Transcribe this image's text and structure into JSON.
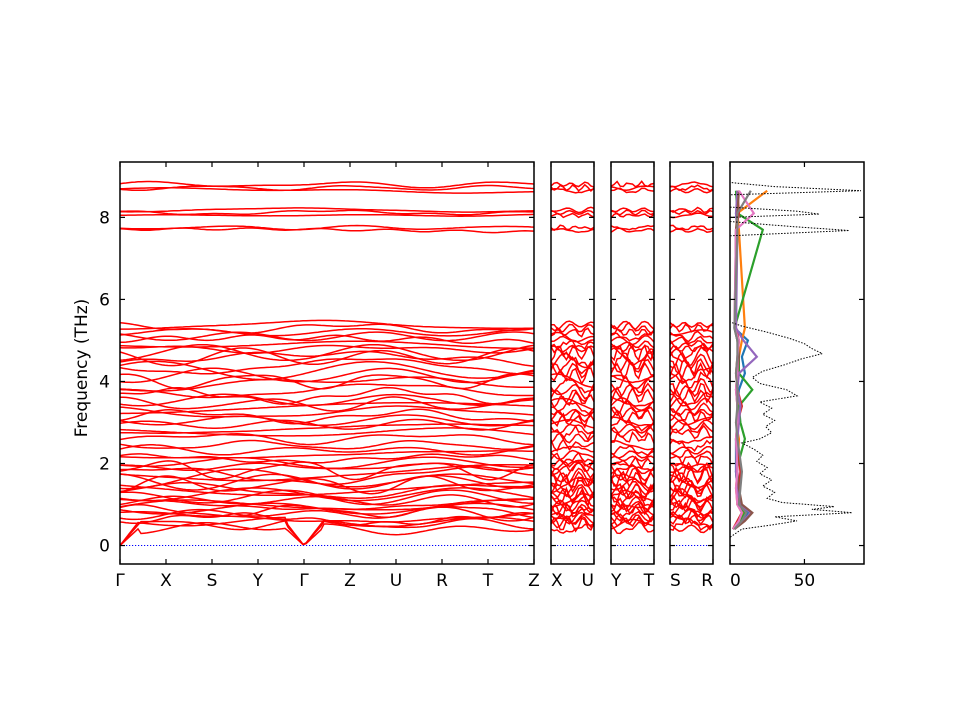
{
  "chart_data": {
    "type": "line",
    "title": "",
    "ylabel": "Frequency (THz)",
    "ylim": [
      -0.45,
      9.35
    ],
    "y_ticks": [
      0,
      2,
      4,
      6,
      8
    ],
    "band_color": "#ff0000",
    "zero_line_color": "#0000ff",
    "grid": false,
    "band_segments": [
      {
        "labels": [
          "Γ",
          "X",
          "S",
          "Y",
          "Γ",
          "Z",
          "U",
          "R",
          "T",
          "Z"
        ],
        "acoustic_gamma_at": [
          0,
          4
        ]
      },
      {
        "labels": [
          "X",
          "U"
        ],
        "acoustic_gamma_at": []
      },
      {
        "labels": [
          "Y",
          "T"
        ],
        "acoustic_gamma_at": []
      },
      {
        "labels": [
          "S",
          "R"
        ],
        "acoustic_gamma_at": []
      }
    ],
    "band_frequencies": [
      0.42,
      0.52,
      0.58,
      0.64,
      0.7,
      0.78,
      0.84,
      0.9,
      0.97,
      1.03,
      1.1,
      1.18,
      1.25,
      1.33,
      1.4,
      1.48,
      1.55,
      1.62,
      1.7,
      1.78,
      1.85,
      1.92,
      2.02,
      2.12,
      2.22,
      2.32,
      2.45,
      2.62,
      2.75,
      2.85,
      2.95,
      3.05,
      3.15,
      3.25,
      3.35,
      3.45,
      3.55,
      3.65,
      3.78,
      3.9,
      4.02,
      4.15,
      4.27,
      4.38,
      4.5,
      4.6,
      4.7,
      4.8,
      4.9,
      5.0,
      5.1,
      5.2,
      5.3,
      5.38,
      7.68,
      7.75,
      8.05,
      8.12,
      8.18,
      8.65,
      8.72,
      8.8
    ],
    "dos": {
      "x_ticks": [
        0,
        50
      ],
      "xlim": [
        0,
        90
      ],
      "total_color": "#000000",
      "total_style": "dotted",
      "total": [
        [
          -0.45,
          0
        ],
        [
          0.2,
          0
        ],
        [
          0.4,
          8
        ],
        [
          0.5,
          28
        ],
        [
          0.6,
          45
        ],
        [
          0.7,
          30
        ],
        [
          0.8,
          82
        ],
        [
          0.88,
          55
        ],
        [
          0.95,
          70
        ],
        [
          1.05,
          35
        ],
        [
          1.15,
          25
        ],
        [
          1.3,
          30
        ],
        [
          1.45,
          22
        ],
        [
          1.6,
          28
        ],
        [
          1.75,
          20
        ],
        [
          1.9,
          25
        ],
        [
          2.05,
          18
        ],
        [
          2.2,
          22
        ],
        [
          2.35,
          16
        ],
        [
          2.5,
          8
        ],
        [
          2.6,
          20
        ],
        [
          2.75,
          28
        ],
        [
          2.9,
          24
        ],
        [
          3.05,
          30
        ],
        [
          3.2,
          22
        ],
        [
          3.35,
          28
        ],
        [
          3.5,
          20
        ],
        [
          3.65,
          45
        ],
        [
          3.8,
          38
        ],
        [
          3.95,
          20
        ],
        [
          4.1,
          15
        ],
        [
          4.25,
          22
        ],
        [
          4.4,
          36
        ],
        [
          4.55,
          48
        ],
        [
          4.68,
          62
        ],
        [
          4.8,
          55
        ],
        [
          4.92,
          50
        ],
        [
          5.05,
          40
        ],
        [
          5.2,
          25
        ],
        [
          5.35,
          8
        ],
        [
          5.45,
          0
        ],
        [
          7.55,
          0
        ],
        [
          7.68,
          80
        ],
        [
          7.78,
          40
        ],
        [
          7.9,
          0
        ],
        [
          8.0,
          0
        ],
        [
          8.08,
          60
        ],
        [
          8.15,
          45
        ],
        [
          8.25,
          0
        ],
        [
          8.55,
          0
        ],
        [
          8.65,
          88
        ],
        [
          8.75,
          30
        ],
        [
          8.85,
          0
        ],
        [
          9.35,
          0
        ]
      ],
      "partial_colors": [
        "#1f77b4",
        "#ff7f0e",
        "#2ca02c",
        "#d62728",
        "#9467bd",
        "#8c564b",
        "#e377c2",
        "#7f7f7f"
      ],
      "partials": [
        [
          [
            0.4,
            2
          ],
          [
            0.6,
            8
          ],
          [
            0.8,
            12
          ],
          [
            1.0,
            6
          ],
          [
            1.4,
            5
          ],
          [
            1.8,
            4
          ],
          [
            2.6,
            4
          ],
          [
            3.0,
            6
          ],
          [
            3.4,
            5
          ],
          [
            3.8,
            6
          ],
          [
            4.2,
            10
          ],
          [
            4.6,
            8
          ],
          [
            5.0,
            12
          ],
          [
            5.3,
            3
          ],
          [
            7.7,
            5
          ],
          [
            8.1,
            4
          ],
          [
            8.65,
            6
          ]
        ],
        [
          [
            0.4,
            2
          ],
          [
            0.6,
            6
          ],
          [
            0.8,
            9
          ],
          [
            1.0,
            5
          ],
          [
            1.4,
            4
          ],
          [
            1.8,
            5
          ],
          [
            2.6,
            6
          ],
          [
            3.0,
            4
          ],
          [
            3.4,
            6
          ],
          [
            3.8,
            4
          ],
          [
            4.2,
            5
          ],
          [
            4.6,
            6
          ],
          [
            5.0,
            8
          ],
          [
            5.3,
            10
          ],
          [
            7.7,
            6
          ],
          [
            8.1,
            5
          ],
          [
            8.65,
            25
          ]
        ],
        [
          [
            0.4,
            2
          ],
          [
            0.6,
            7
          ],
          [
            0.8,
            10
          ],
          [
            1.0,
            6
          ],
          [
            1.4,
            5
          ],
          [
            1.8,
            4
          ],
          [
            2.6,
            10
          ],
          [
            3.0,
            7
          ],
          [
            3.4,
            6
          ],
          [
            3.8,
            15
          ],
          [
            4.2,
            6
          ],
          [
            4.6,
            6
          ],
          [
            5.0,
            5
          ],
          [
            5.3,
            3
          ],
          [
            7.7,
            22
          ],
          [
            8.1,
            5
          ],
          [
            8.65,
            4
          ]
        ],
        [
          [
            0.4,
            2
          ],
          [
            0.6,
            5
          ],
          [
            0.8,
            8
          ],
          [
            1.0,
            5
          ],
          [
            1.4,
            6
          ],
          [
            1.8,
            7
          ],
          [
            2.6,
            5
          ],
          [
            3.0,
            5
          ],
          [
            3.4,
            8
          ],
          [
            3.8,
            5
          ],
          [
            4.2,
            4
          ],
          [
            4.6,
            5
          ],
          [
            5.0,
            6
          ],
          [
            5.3,
            4
          ],
          [
            7.7,
            4
          ],
          [
            8.1,
            6
          ],
          [
            8.65,
            5
          ]
        ],
        [
          [
            0.4,
            3
          ],
          [
            0.6,
            9
          ],
          [
            0.8,
            14
          ],
          [
            1.0,
            7
          ],
          [
            1.4,
            5
          ],
          [
            1.8,
            4
          ],
          [
            2.6,
            5
          ],
          [
            3.0,
            6
          ],
          [
            3.4,
            7
          ],
          [
            3.8,
            5
          ],
          [
            4.2,
            6
          ],
          [
            4.6,
            18
          ],
          [
            5.0,
            9
          ],
          [
            5.3,
            4
          ],
          [
            7.7,
            5
          ],
          [
            8.1,
            4
          ],
          [
            8.65,
            5
          ]
        ],
        [
          [
            0.4,
            3
          ],
          [
            0.6,
            10
          ],
          [
            0.8,
            15
          ],
          [
            1.0,
            8
          ],
          [
            1.4,
            6
          ],
          [
            1.8,
            5
          ],
          [
            2.6,
            4
          ],
          [
            3.0,
            5
          ],
          [
            3.4,
            5
          ],
          [
            3.8,
            4
          ],
          [
            4.2,
            5
          ],
          [
            4.6,
            6
          ],
          [
            5.0,
            5
          ],
          [
            5.3,
            3
          ],
          [
            7.7,
            4
          ],
          [
            8.1,
            5
          ],
          [
            8.65,
            6
          ]
        ],
        [
          [
            0.4,
            2
          ],
          [
            0.6,
            6
          ],
          [
            0.8,
            8
          ],
          [
            1.0,
            5
          ],
          [
            1.4,
            4
          ],
          [
            1.8,
            5
          ],
          [
            2.6,
            4
          ],
          [
            3.0,
            5
          ],
          [
            3.4,
            5
          ],
          [
            3.8,
            4
          ],
          [
            4.2,
            5
          ],
          [
            4.6,
            5
          ],
          [
            5.0,
            6
          ],
          [
            5.3,
            3
          ],
          [
            7.7,
            4
          ],
          [
            8.1,
            16
          ],
          [
            8.65,
            6
          ]
        ],
        [
          [
            0.4,
            3
          ],
          [
            0.6,
            8
          ],
          [
            0.8,
            11
          ],
          [
            1.0,
            6
          ],
          [
            1.4,
            7
          ],
          [
            1.8,
            8
          ],
          [
            2.6,
            5
          ],
          [
            3.0,
            4
          ],
          [
            3.4,
            5
          ],
          [
            3.8,
            5
          ],
          [
            4.2,
            4
          ],
          [
            4.6,
            5
          ],
          [
            5.0,
            5
          ],
          [
            5.3,
            3
          ],
          [
            7.7,
            5
          ],
          [
            8.1,
            5
          ],
          [
            8.65,
            14
          ]
        ]
      ]
    }
  }
}
